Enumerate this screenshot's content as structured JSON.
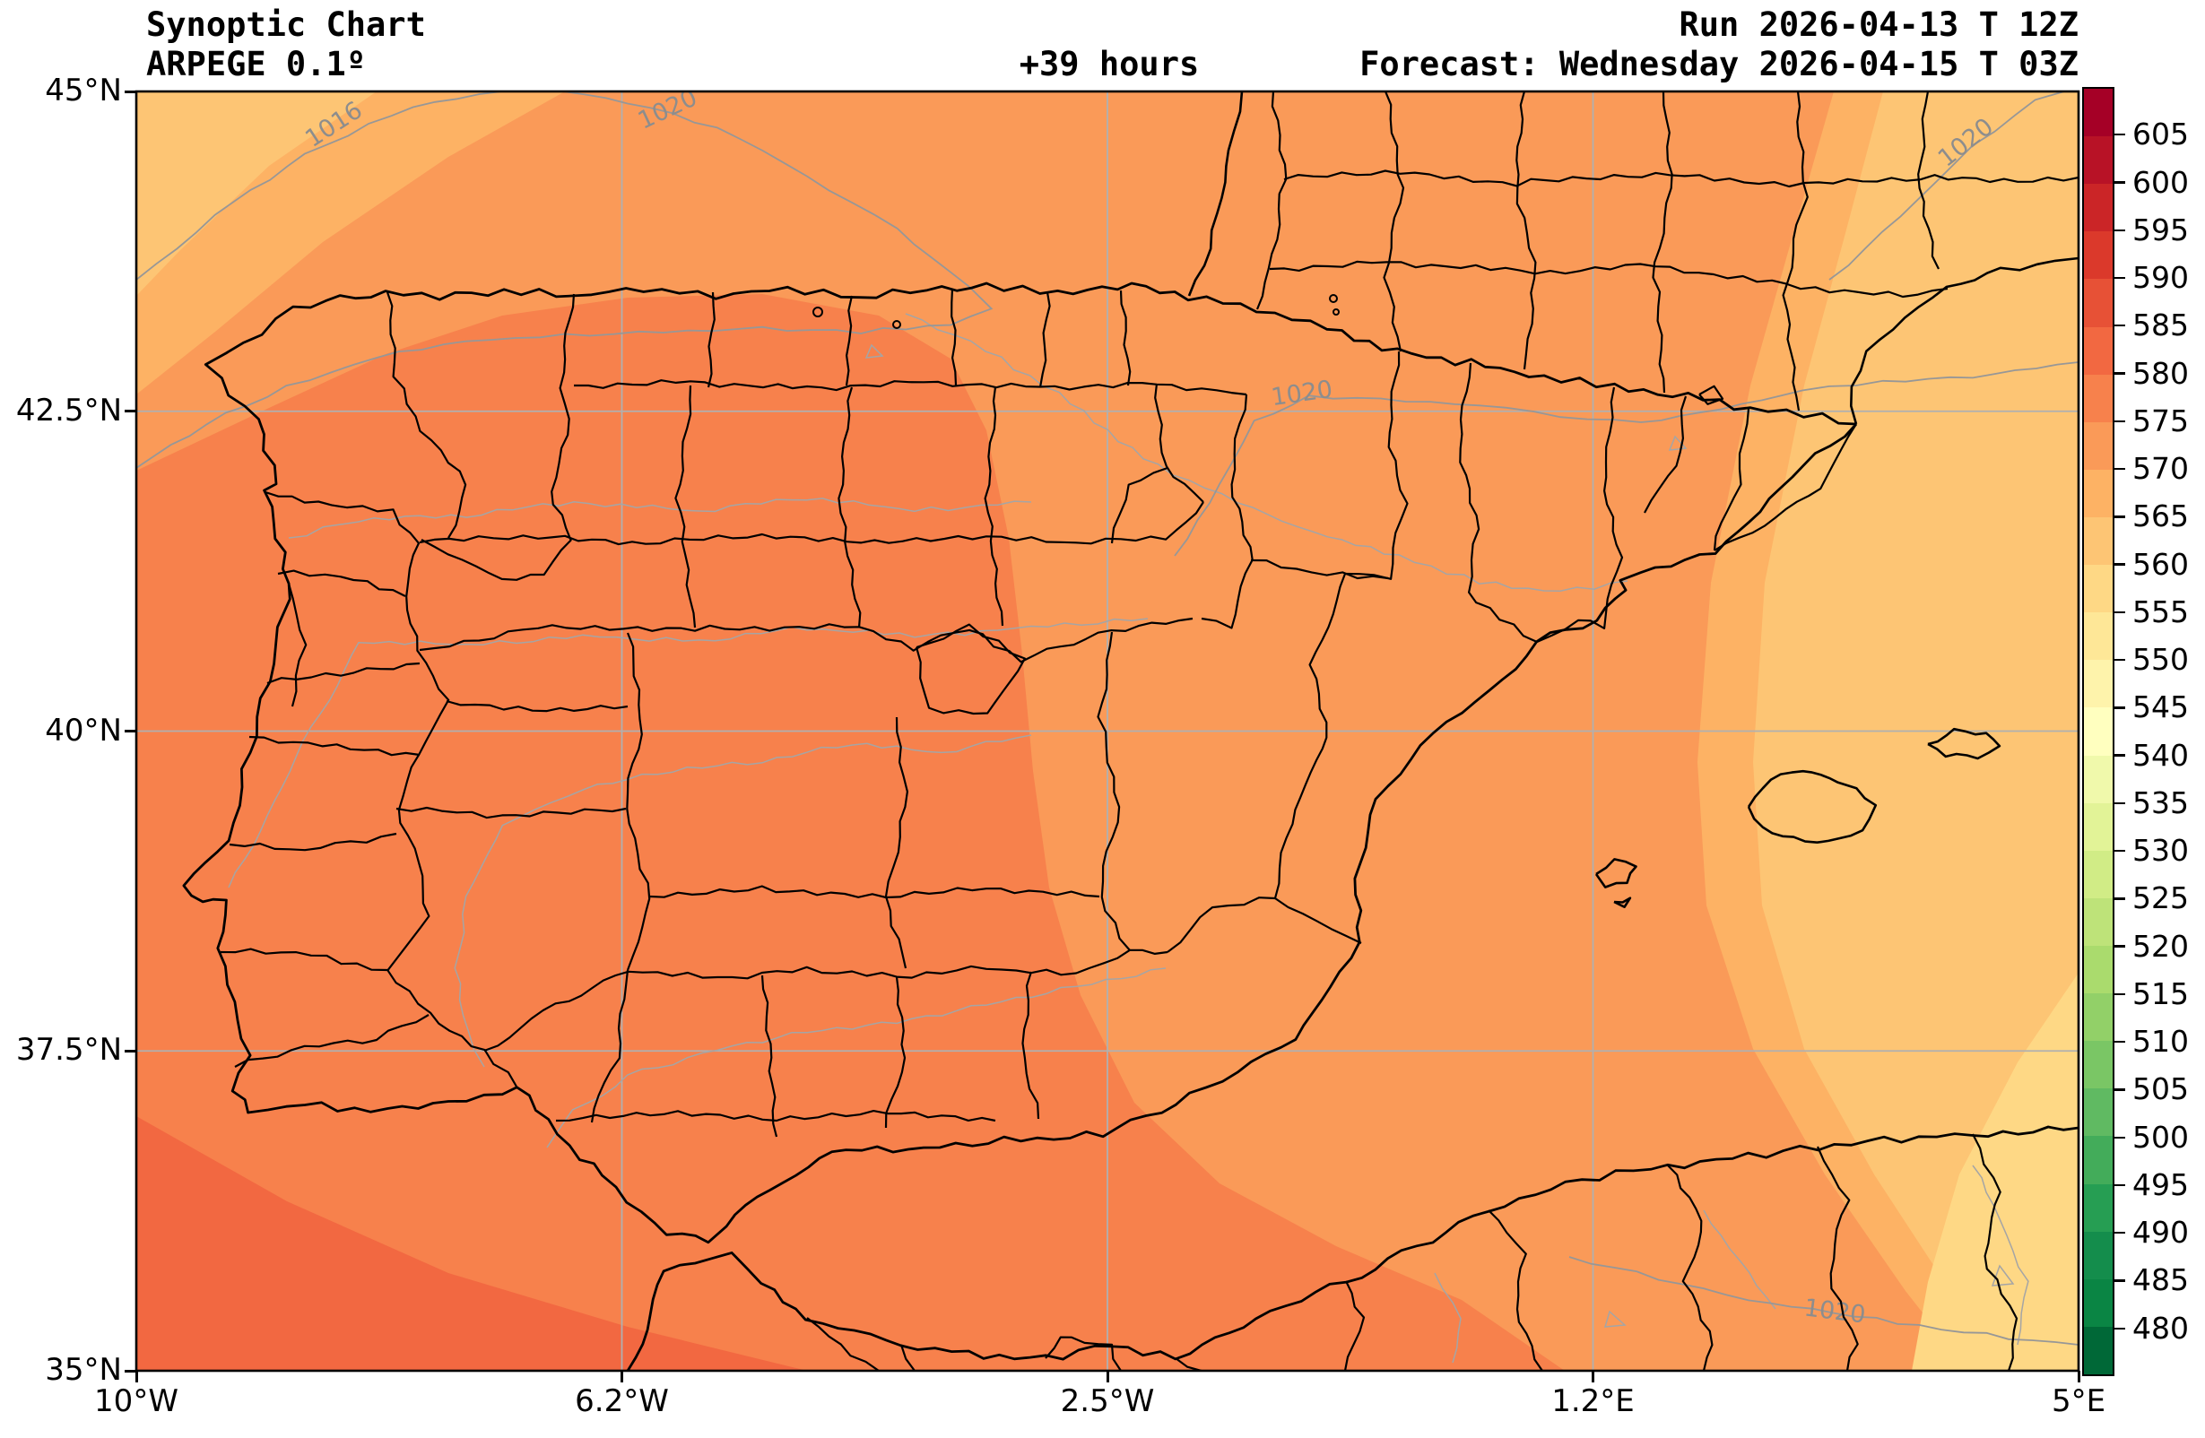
{
  "header": {
    "title": "Synoptic Chart",
    "model": "ARPEGE 0.1º",
    "lead_time": "+39 hours",
    "run": "Run 2026-04-13 T 12Z",
    "forecast": "Forecast: Wednesday 2026-04-15 T 03Z"
  },
  "axes": {
    "x_tick_labels": [
      "10°W",
      "6.2°W",
      "2.5°W",
      "1.2°E",
      "5°E"
    ],
    "y_tick_labels": [
      "45°N",
      "42.5°N",
      "40°N",
      "37.5°N",
      "35°N"
    ]
  },
  "colorbar": {
    "tick_labels": [
      "605",
      "600",
      "595",
      "590",
      "585",
      "580",
      "575",
      "570",
      "565",
      "560",
      "555",
      "550",
      "545",
      "540",
      "535",
      "530",
      "525",
      "520",
      "515",
      "510",
      "505",
      "500",
      "495",
      "490",
      "485",
      "480"
    ],
    "segment_colors_top_to_bottom": [
      "#a50026",
      "#b81226",
      "#cb2527",
      "#db392b",
      "#e75136",
      "#f26841",
      "#f7814c",
      "#fa9a58",
      "#fdb264",
      "#fdc574",
      "#fed885",
      "#fee797",
      "#fef3ab",
      "#ffffbf",
      "#f0f9ab",
      "#e2f397",
      "#d1ec86",
      "#bee379",
      "#aadb6d",
      "#92d068",
      "#7ac665",
      "#60ba62",
      "#43ac5a",
      "#269e53",
      "#148d4c",
      "#0a8544",
      "#006837"
    ]
  },
  "map": {
    "isobar_labels": [
      {
        "text": "1016"
      },
      {
        "text": "1020"
      },
      {
        "text": "1020"
      },
      {
        "text": "1020"
      },
      {
        "text": "1020"
      }
    ],
    "colors": {
      "grid": "#b0b0b0",
      "isobar": "#979797",
      "river": "#a5a5a5",
      "border": "#000000",
      "frame": "#000000",
      "band_555_560": "#fed885",
      "band_560_565": "#fdc574",
      "band_565_570": "#fdb264",
      "band_570_575": "#fa9a58",
      "band_575_580": "#f7814c",
      "band_580_585": "#f26841"
    }
  },
  "chart_data": {
    "type": "heatmap",
    "subtype": "filled_contour_weather_map",
    "title": "Synoptic Chart",
    "model": "ARPEGE 0.1º",
    "run": "2026-04-13 12Z",
    "forecast_valid": "Wednesday 2026-04-15 03Z",
    "lead_hours": 39,
    "region": "Iberian Peninsula, Balearic Islands, southern France, northwest Africa",
    "lon_range_deg": [
      -10,
      5
    ],
    "lat_range_deg": [
      35,
      45
    ],
    "x_tick_labels": [
      "10°W",
      "6.2°W",
      "2.5°W",
      "1.2°E",
      "5°E"
    ],
    "y_tick_labels": [
      "45°N",
      "42.5°N",
      "40°N",
      "37.5°N",
      "35°N"
    ],
    "grid": true,
    "colorbar": {
      "position": "right",
      "tick_min": 480,
      "tick_max": 605,
      "tick_step": 5,
      "n_segments": 27,
      "colormap": "red-yellow-green reversed (high=dark red, low=dark green)"
    },
    "shaded_field_bands": [
      {
        "value_range": "580-585",
        "color": "#f26841",
        "location": "southwest corner of domain (Atlantic, SW of Gulf of Cadiz)"
      },
      {
        "value_range": "575-580",
        "color": "#f7814c",
        "location": "western and central Iberia down to the Moroccan coast"
      },
      {
        "value_range": "570-575",
        "color": "#fa9a58",
        "location": "Cantabrian strip, Ebro valley, eastern Iberia, most of France portion"
      },
      {
        "value_range": "565-570",
        "color": "#fdb264",
        "location": "narrow band at far northwest corner and along Mediterranean coast"
      },
      {
        "value_range": "560-565",
        "color": "#fdc574",
        "location": "extreme northwest corner and western Mediterranean incl. Balearics"
      },
      {
        "value_range": "555-560",
        "color": "#fed885",
        "location": "southeast corner near Algeria"
      }
    ],
    "isobars_hpa": [
      {
        "value": 1016,
        "location": "northwest corner"
      },
      {
        "value": 1020,
        "location": "arc from north edge across Galicia to the west edge"
      },
      {
        "value": 1020,
        "location": "through the Ebro valley eastward to the right edge"
      },
      {
        "value": 1020,
        "location": "top right corner"
      },
      {
        "value": 1020,
        "location": "along the North African coast, bottom right"
      }
    ]
  }
}
